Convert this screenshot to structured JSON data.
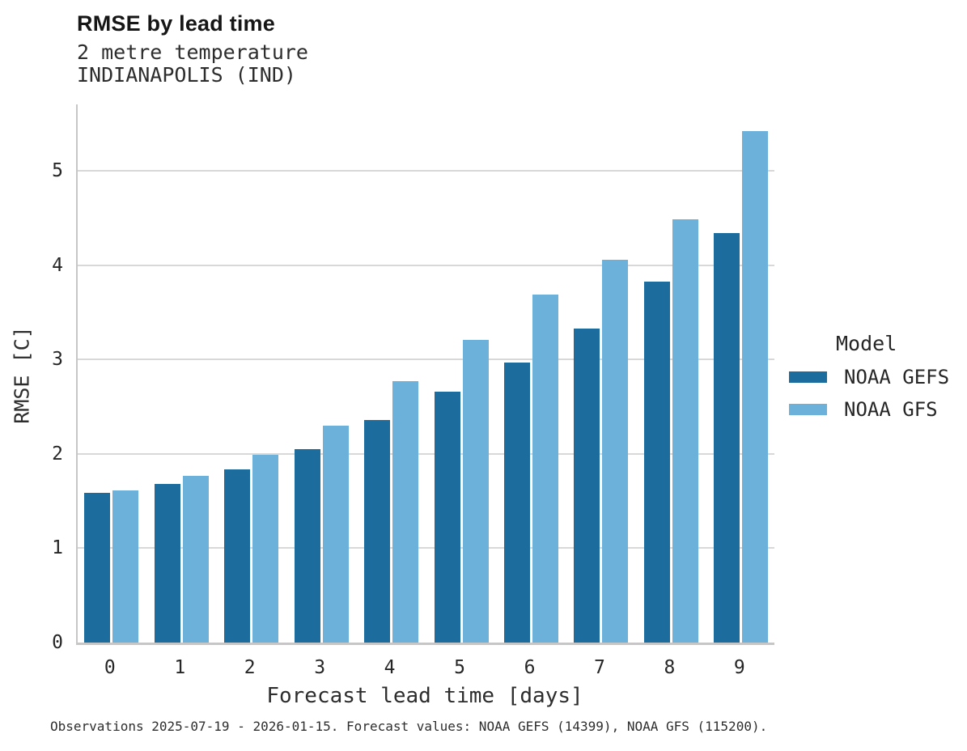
{
  "header": {
    "title": "RMSE by lead time",
    "subtitle_line1": "2 metre temperature",
    "subtitle_line2": "INDIANAPOLIS (IND)"
  },
  "chart_data": {
    "type": "bar",
    "title": "RMSE by lead time",
    "subtitle": [
      "2 metre temperature",
      "INDIANAPOLIS (IND)"
    ],
    "categories": [
      "0",
      "1",
      "2",
      "3",
      "4",
      "5",
      "6",
      "7",
      "8",
      "9"
    ],
    "series": [
      {
        "name": "NOAA GEFS",
        "color": "#1c6d9e",
        "values": [
          1.59,
          1.68,
          1.84,
          2.05,
          2.36,
          2.66,
          2.97,
          3.33,
          3.83,
          4.34
        ]
      },
      {
        "name": "NOAA GFS",
        "color": "#6bb1d9",
        "values": [
          1.61,
          1.77,
          1.99,
          2.3,
          2.77,
          3.21,
          3.69,
          4.06,
          4.49,
          5.42
        ]
      }
    ],
    "xlabel": "Forecast lead time [days]",
    "ylabel": "RMSE [C]",
    "ylim": [
      0,
      5.71
    ],
    "yticks": [
      0,
      1,
      2,
      3,
      4,
      5
    ],
    "grid": true,
    "legend_title": "Model",
    "legend_position": "right"
  },
  "legend": {
    "title": "Model"
  },
  "footer": {
    "caption": "Observations 2025-07-19 - 2026-01-15. Forecast values: NOAA GEFS (14399), NOAA GFS (115200)."
  }
}
